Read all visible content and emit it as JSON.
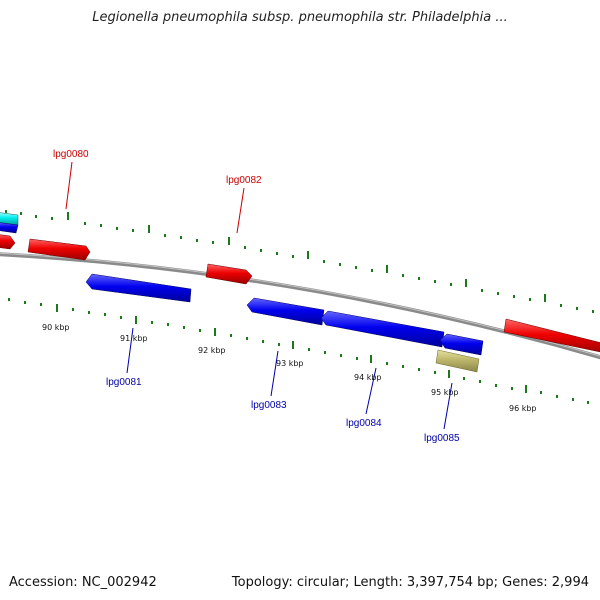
{
  "header": {
    "title": "Legionella pneumophila subsp. pneumophila str. Philadelphia ..."
  },
  "footer": {
    "accession": "Accession: NC_002942",
    "stats": "Topology: circular; Length: 3,397,754 bp; Genes: 2,994"
  },
  "colors": {
    "forward_gene": "#ee0000",
    "reverse_gene": "#0000ee",
    "other_feature": "#bdb76b",
    "partial_feature": "#00dddd",
    "backbone": "#888888",
    "ticks": "#1a7a1a",
    "forward_label": "#cc0000",
    "reverse_label": "#0000aa"
  },
  "scale_labels": [
    "90 kbp",
    "91 kbp",
    "92 kbp",
    "93 kbp",
    "94 kbp",
    "95 kbp",
    "96 kbp"
  ],
  "forward_labels": [
    "lpg0080",
    "lpg0082"
  ],
  "reverse_labels": [
    "lpg0081",
    "lpg0083",
    "lpg0084",
    "lpg0085"
  ]
}
